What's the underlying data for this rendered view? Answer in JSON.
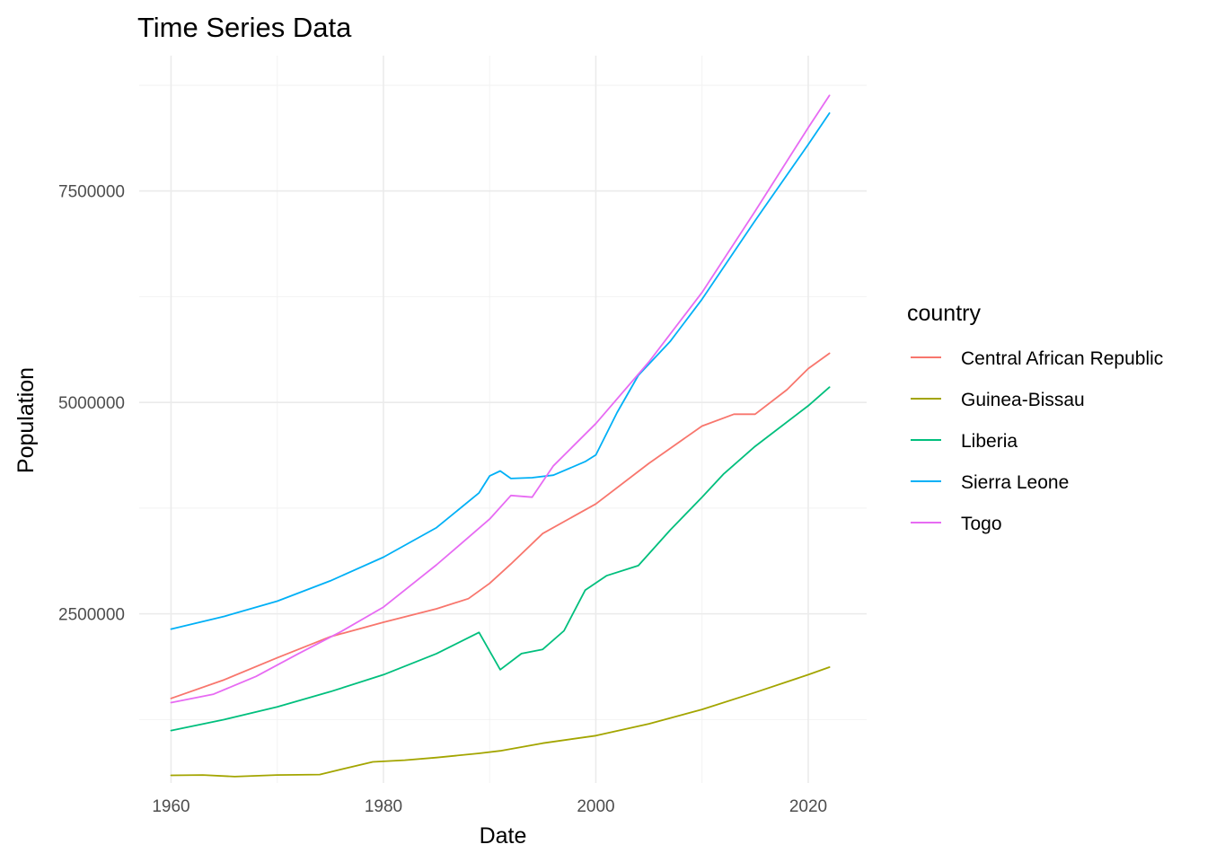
{
  "chart_data": {
    "type": "line",
    "title": "Time Series Data",
    "xlabel": "Date",
    "ylabel": "Population",
    "xlim": [
      1957,
      2025.5
    ],
    "ylim": [
      500000,
      9100000
    ],
    "x_ticks": [
      1960,
      1980,
      2000,
      2020
    ],
    "y_ticks": [
      2500000,
      5000000,
      7500000
    ],
    "y_tick_labels": [
      "2500000",
      "5000000",
      "7500000"
    ],
    "grid": true,
    "legend": {
      "title": "country",
      "position": "right"
    },
    "series": [
      {
        "name": "Central African Republic",
        "color": "#F8766D",
        "points": [
          [
            1960,
            1500000
          ],
          [
            1965,
            1720000
          ],
          [
            1970,
            1980000
          ],
          [
            1975,
            2230000
          ],
          [
            1980,
            2400000
          ],
          [
            1985,
            2560000
          ],
          [
            1988,
            2680000
          ],
          [
            1990,
            2860000
          ],
          [
            1992,
            3090000
          ],
          [
            1995,
            3450000
          ],
          [
            2000,
            3800000
          ],
          [
            2005,
            4280000
          ],
          [
            2010,
            4720000
          ],
          [
            2013,
            4860000
          ],
          [
            2015,
            4860000
          ],
          [
            2018,
            5150000
          ],
          [
            2020,
            5400000
          ],
          [
            2022,
            5580000
          ]
        ]
      },
      {
        "name": "Guinea-Bissau",
        "color": "#A3A500",
        "points": [
          [
            1960,
            590000
          ],
          [
            1963,
            595000
          ],
          [
            1966,
            575000
          ],
          [
            1970,
            595000
          ],
          [
            1974,
            600000
          ],
          [
            1976,
            660000
          ],
          [
            1979,
            750000
          ],
          [
            1982,
            770000
          ],
          [
            1985,
            800000
          ],
          [
            1989,
            850000
          ],
          [
            1991,
            880000
          ],
          [
            1995,
            970000
          ],
          [
            2000,
            1060000
          ],
          [
            2005,
            1200000
          ],
          [
            2010,
            1370000
          ],
          [
            2015,
            1570000
          ],
          [
            2020,
            1780000
          ],
          [
            2022,
            1870000
          ]
        ]
      },
      {
        "name": "Liberia",
        "color": "#00BF7D",
        "points": [
          [
            1960,
            1120000
          ],
          [
            1965,
            1250000
          ],
          [
            1970,
            1400000
          ],
          [
            1975,
            1580000
          ],
          [
            1980,
            1780000
          ],
          [
            1985,
            2030000
          ],
          [
            1989,
            2280000
          ],
          [
            1990,
            2060000
          ],
          [
            1991,
            1840000
          ],
          [
            1993,
            2030000
          ],
          [
            1995,
            2080000
          ],
          [
            1997,
            2300000
          ],
          [
            1999,
            2780000
          ],
          [
            2001,
            2950000
          ],
          [
            2004,
            3070000
          ],
          [
            2007,
            3490000
          ],
          [
            2010,
            3880000
          ],
          [
            2012,
            4150000
          ],
          [
            2015,
            4480000
          ],
          [
            2020,
            4960000
          ],
          [
            2022,
            5180000
          ]
        ]
      },
      {
        "name": "Sierra Leone",
        "color": "#00B0F6",
        "points": [
          [
            1960,
            2320000
          ],
          [
            1965,
            2470000
          ],
          [
            1970,
            2650000
          ],
          [
            1975,
            2890000
          ],
          [
            1980,
            3170000
          ],
          [
            1985,
            3520000
          ],
          [
            1989,
            3930000
          ],
          [
            1990,
            4130000
          ],
          [
            1991,
            4190000
          ],
          [
            1992,
            4100000
          ],
          [
            1994,
            4110000
          ],
          [
            1996,
            4140000
          ],
          [
            1999,
            4300000
          ],
          [
            2000,
            4380000
          ],
          [
            2002,
            4880000
          ],
          [
            2004,
            5320000
          ],
          [
            2007,
            5720000
          ],
          [
            2010,
            6220000
          ],
          [
            2015,
            7150000
          ],
          [
            2020,
            8050000
          ],
          [
            2022,
            8420000
          ]
        ]
      },
      {
        "name": "Togo",
        "color": "#E76BF3",
        "points": [
          [
            1960,
            1450000
          ],
          [
            1964,
            1550000
          ],
          [
            1968,
            1760000
          ],
          [
            1972,
            2030000
          ],
          [
            1976,
            2290000
          ],
          [
            1980,
            2580000
          ],
          [
            1985,
            3080000
          ],
          [
            1990,
            3620000
          ],
          [
            1992,
            3900000
          ],
          [
            1994,
            3880000
          ],
          [
            1996,
            4250000
          ],
          [
            2000,
            4750000
          ],
          [
            2005,
            5480000
          ],
          [
            2010,
            6300000
          ],
          [
            2015,
            7260000
          ],
          [
            2020,
            8250000
          ],
          [
            2022,
            8630000
          ]
        ]
      }
    ]
  }
}
